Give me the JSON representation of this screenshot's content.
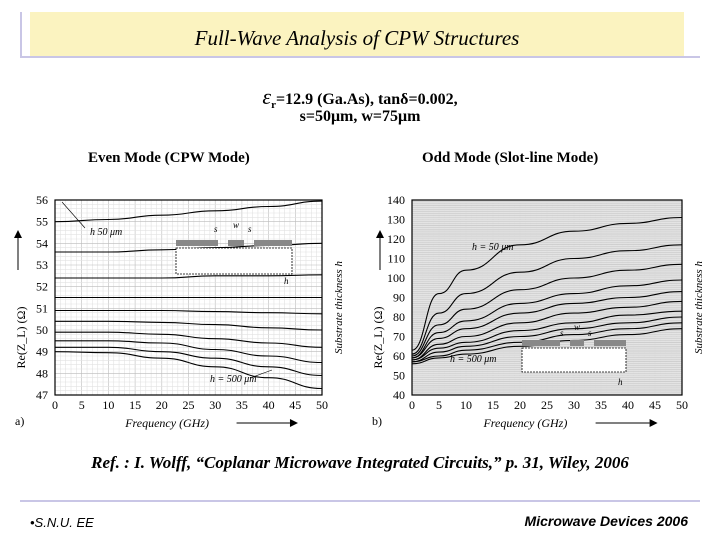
{
  "slide": {
    "title": "Full-Wave Analysis of CPW Structures",
    "param_line1_symbol": "ε",
    "param_line1_sub": "r",
    "param_line1_text": "=12.9 (Ga.As), tanδ=0.002,",
    "param_line2": "s=50μm, w=75μm",
    "reference": "Ref. : I. Wolff, “Coplanar Microwave Integrated Circuits,” p. 31, Wiley, 2006",
    "footer_left": "•S.N.U. EE",
    "footer_right": "Microwave Devices 2006",
    "accent_color": "#fbf3c0",
    "rule_color": "#c9c6e6"
  },
  "chart_data": [
    {
      "type": "line",
      "panel_title": "Even Mode (CPW Mode)",
      "panel_label": "a)",
      "xlabel": "Frequency (GHz)",
      "ylabel": "Re(Z_L) (Ω)",
      "right_label": "Substrate thickness h",
      "xlim": [
        0,
        50
      ],
      "ylim": [
        47,
        56
      ],
      "xticks": [
        0,
        5,
        10,
        15,
        20,
        25,
        30,
        35,
        40,
        45,
        50
      ],
      "yticks": [
        47,
        48,
        49,
        50,
        51,
        52,
        53,
        54,
        55,
        56
      ],
      "grid": true,
      "annotations": [
        "h  50 μm",
        "h = 500 μm",
        "s",
        "w",
        "s",
        "h"
      ],
      "x": [
        0,
        10,
        20,
        30,
        40,
        50
      ],
      "series": [
        {
          "values": [
            55.0,
            55.1,
            55.3,
            55.5,
            55.7,
            55.95
          ]
        },
        {
          "values": [
            53.6,
            53.6,
            53.7,
            53.8,
            53.9,
            54.0
          ]
        },
        {
          "values": [
            52.4,
            52.4,
            52.4,
            52.5,
            52.5,
            52.55
          ]
        },
        {
          "values": [
            51.5,
            51.5,
            51.5,
            51.5,
            51.5,
            51.5
          ]
        },
        {
          "values": [
            50.9,
            50.9,
            50.9,
            50.85,
            50.8,
            50.75
          ]
        },
        {
          "values": [
            50.4,
            50.4,
            50.35,
            50.25,
            50.1,
            50.0
          ]
        },
        {
          "values": [
            49.9,
            49.9,
            49.8,
            49.6,
            49.4,
            49.2
          ]
        },
        {
          "values": [
            49.5,
            49.5,
            49.4,
            49.1,
            48.8,
            48.5
          ]
        },
        {
          "values": [
            49.2,
            49.2,
            49.0,
            48.7,
            48.3,
            47.9
          ]
        },
        {
          "values": [
            49.0,
            48.95,
            48.7,
            48.3,
            47.8,
            47.3
          ]
        }
      ]
    },
    {
      "type": "line",
      "panel_title": "Odd Mode (Slot-line Mode)",
      "panel_label": "b)",
      "xlabel": "Frequency (GHz)",
      "ylabel": "Re(Z_L) (Ω)",
      "right_label": "Substrate thickness h",
      "xlim": [
        0,
        50
      ],
      "ylim": [
        40,
        140
      ],
      "xticks": [
        0,
        5,
        10,
        15,
        20,
        25,
        30,
        35,
        40,
        45,
        50
      ],
      "yticks": [
        40,
        50,
        60,
        70,
        80,
        90,
        100,
        110,
        120,
        130,
        140
      ],
      "grid": true,
      "annotations": [
        "h = 50 μm",
        "h = 500 μm",
        "s",
        "w",
        "s",
        "h"
      ],
      "x": [
        0,
        5,
        10,
        20,
        30,
        40,
        50
      ],
      "series": [
        {
          "values": [
            63,
            92,
            104,
            117,
            124,
            128,
            131
          ]
        },
        {
          "values": [
            61,
            82,
            92,
            103,
            110,
            114,
            117
          ]
        },
        {
          "values": [
            60,
            76,
            84,
            94,
            100,
            104,
            107
          ]
        },
        {
          "values": [
            59,
            72,
            78,
            87,
            92,
            96,
            99
          ]
        },
        {
          "values": [
            59,
            69,
            74,
            82,
            87,
            90,
            93
          ]
        },
        {
          "values": [
            58,
            66,
            70,
            77,
            82,
            85,
            88
          ]
        },
        {
          "values": [
            58,
            64,
            67,
            73,
            77,
            81,
            83
          ]
        },
        {
          "values": [
            57,
            62,
            65,
            70,
            74,
            77,
            80
          ]
        },
        {
          "values": [
            57,
            60,
            63,
            67,
            71,
            74,
            77
          ]
        },
        {
          "values": [
            56,
            59,
            61,
            65,
            68,
            71,
            74
          ]
        }
      ]
    }
  ]
}
